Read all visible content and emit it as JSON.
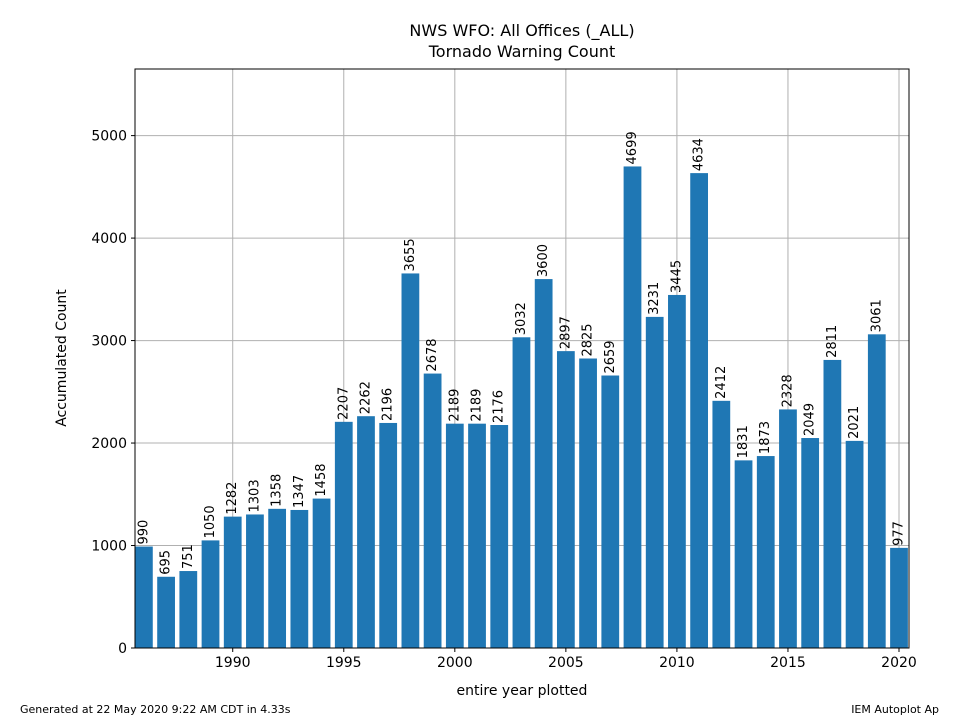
{
  "chart_data": {
    "type": "bar",
    "title": "NWS WFO: All Offices (_ALL)",
    "subtitle": "Tornado Warning Count",
    "xlabel": "entire year plotted",
    "ylabel": "Accumulated Count",
    "x": [
      1986,
      1987,
      1988,
      1989,
      1990,
      1991,
      1992,
      1993,
      1994,
      1995,
      1996,
      1997,
      1998,
      1999,
      2000,
      2001,
      2002,
      2003,
      2004,
      2005,
      2006,
      2007,
      2008,
      2009,
      2010,
      2011,
      2012,
      2013,
      2014,
      2015,
      2016,
      2017,
      2018,
      2019,
      2020
    ],
    "values": [
      990,
      695,
      751,
      1050,
      1282,
      1303,
      1358,
      1347,
      1458,
      2207,
      2262,
      2196,
      3655,
      2678,
      2189,
      2189,
      2176,
      3032,
      3600,
      2897,
      2825,
      2659,
      4699,
      3231,
      3445,
      4634,
      2412,
      1831,
      1873,
      2328,
      2049,
      2811,
      2021,
      3061,
      977
    ],
    "xlim": [
      1985.6,
      2020.45
    ],
    "ylim": [
      0,
      5650
    ],
    "xticks": [
      1990,
      1995,
      2000,
      2005,
      2010,
      2015,
      2020
    ],
    "yticks": [
      0,
      1000,
      2000,
      3000,
      4000,
      5000
    ],
    "grid": true,
    "bar_color": "#1f77b4"
  },
  "footer": {
    "left": "Generated at 22 May 2020 9:22 AM CDT in 4.33s",
    "right": "IEM Autoplot Ap"
  }
}
